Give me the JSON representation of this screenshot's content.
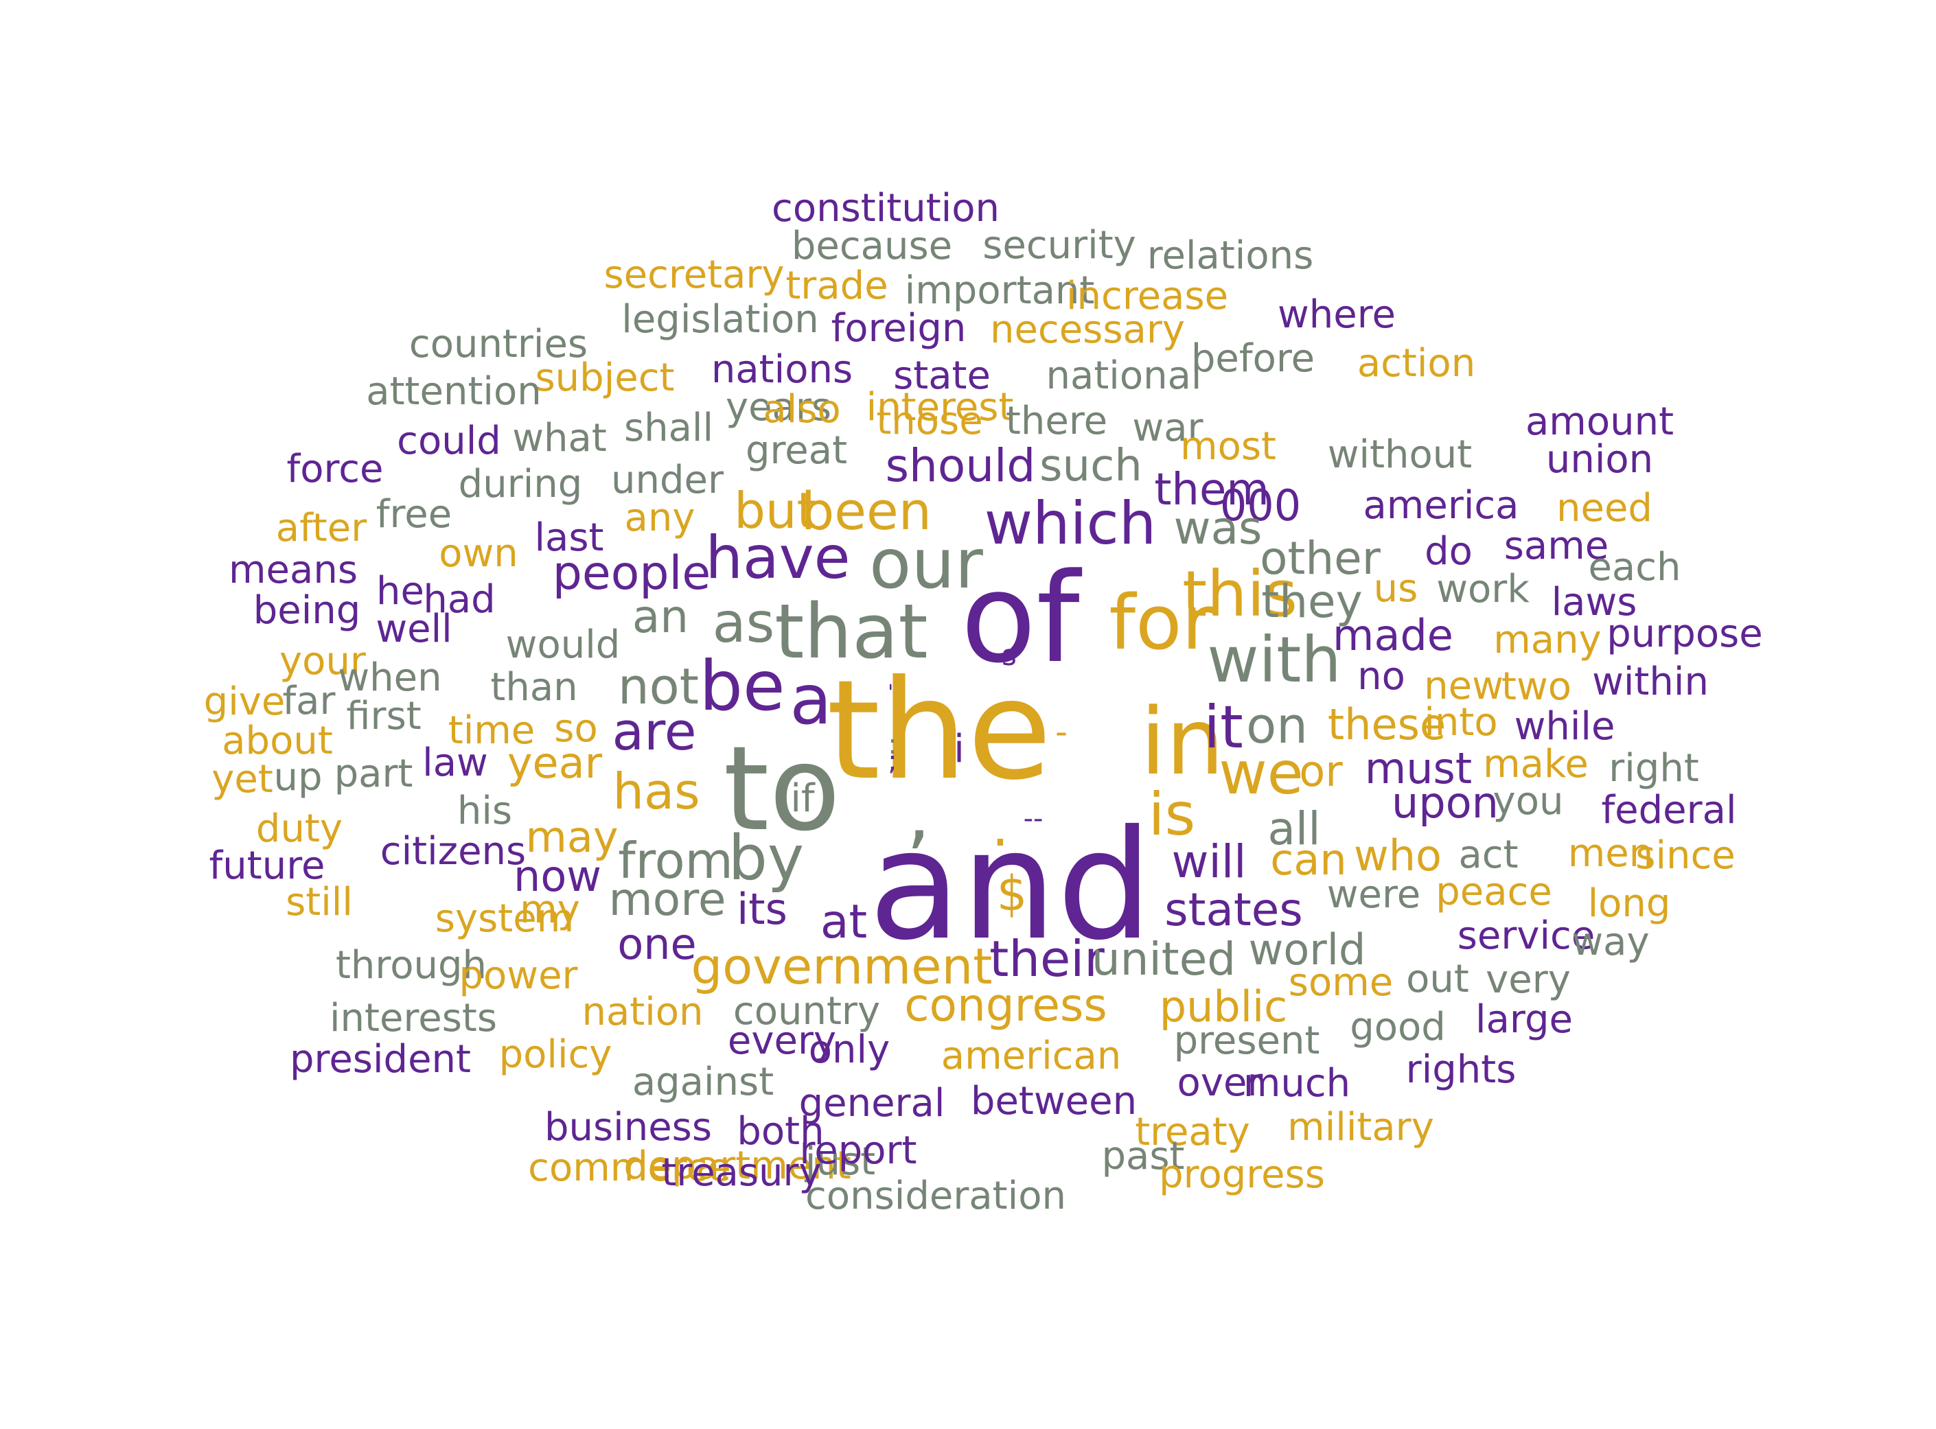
{
  "colors": {
    "purple": "#5f2592",
    "gold": "#daa520",
    "gray": "#768576"
  },
  "words": [
    {
      "text": "constitution",
      "color": "purple"
    },
    {
      "text": "because",
      "color": "gray"
    },
    {
      "text": "security",
      "color": "gray"
    },
    {
      "text": "relations",
      "color": "gray"
    },
    {
      "text": "secretary",
      "color": "gold"
    },
    {
      "text": "trade",
      "color": "gold"
    },
    {
      "text": "important",
      "color": "gray"
    },
    {
      "text": "increase",
      "color": "gold"
    },
    {
      "text": "where",
      "color": "purple"
    },
    {
      "text": "legislation",
      "color": "gray"
    },
    {
      "text": "foreign",
      "color": "purple"
    },
    {
      "text": "necessary",
      "color": "gold"
    },
    {
      "text": "countries",
      "color": "gray"
    },
    {
      "text": "before",
      "color": "gray"
    },
    {
      "text": "action",
      "color": "gold"
    },
    {
      "text": "subject",
      "color": "gold"
    },
    {
      "text": "nations",
      "color": "purple"
    },
    {
      "text": "state",
      "color": "purple"
    },
    {
      "text": "national",
      "color": "gray"
    },
    {
      "text": "attention",
      "color": "gray"
    },
    {
      "text": "years",
      "color": "gray"
    },
    {
      "text": "also",
      "color": "gold"
    },
    {
      "text": "interest",
      "color": "gold"
    },
    {
      "text": "amount",
      "color": "purple"
    },
    {
      "text": "shall",
      "color": "gray"
    },
    {
      "text": "those",
      "color": "gold"
    },
    {
      "text": "there",
      "color": "gray"
    },
    {
      "text": "war",
      "color": "gray"
    },
    {
      "text": "could",
      "color": "purple"
    },
    {
      "text": "what",
      "color": "gray"
    },
    {
      "text": "most",
      "color": "gold"
    },
    {
      "text": "without",
      "color": "gray"
    },
    {
      "text": "union",
      "color": "purple"
    },
    {
      "text": "great",
      "color": "gray"
    },
    {
      "text": "should",
      "color": "purple"
    },
    {
      "text": "such",
      "color": "gray"
    },
    {
      "text": "force",
      "color": "purple"
    },
    {
      "text": "during",
      "color": "gray"
    },
    {
      "text": "under",
      "color": "gray"
    },
    {
      "text": "them",
      "color": "purple"
    },
    {
      "text": "000",
      "color": "purple"
    },
    {
      "text": "america",
      "color": "purple"
    },
    {
      "text": "need",
      "color": "gold"
    },
    {
      "text": "after",
      "color": "gold"
    },
    {
      "text": "free",
      "color": "gray"
    },
    {
      "text": "any",
      "color": "gold"
    },
    {
      "text": "but",
      "color": "gold"
    },
    {
      "text": "been",
      "color": "gold"
    },
    {
      "text": "which",
      "color": "purple"
    },
    {
      "text": "was",
      "color": "gray"
    },
    {
      "text": "own",
      "color": "gold"
    },
    {
      "text": "last",
      "color": "purple"
    },
    {
      "text": "have",
      "color": "purple"
    },
    {
      "text": "our",
      "color": "gray"
    },
    {
      "text": "other",
      "color": "gray"
    },
    {
      "text": "do",
      "color": "purple"
    },
    {
      "text": "same",
      "color": "purple"
    },
    {
      "text": "each",
      "color": "gray"
    },
    {
      "text": "means",
      "color": "purple"
    },
    {
      "text": "people",
      "color": "purple"
    },
    {
      "text": "this",
      "color": "gold"
    },
    {
      "text": "he",
      "color": "purple"
    },
    {
      "text": "had",
      "color": "purple"
    },
    {
      "text": "us",
      "color": "gold"
    },
    {
      "text": "work",
      "color": "gray"
    },
    {
      "text": "laws",
      "color": "purple"
    },
    {
      "text": "being",
      "color": "purple"
    },
    {
      "text": "well",
      "color": "purple"
    },
    {
      "text": "an",
      "color": "gray"
    },
    {
      "text": "as",
      "color": "gray"
    },
    {
      "text": "that",
      "color": "gray"
    },
    {
      "text": "of",
      "color": "purple"
    },
    {
      "text": "for",
      "color": "gold"
    },
    {
      "text": "they",
      "color": "gray"
    },
    {
      "text": "made",
      "color": "purple"
    },
    {
      "text": "many",
      "color": "gold"
    },
    {
      "text": "purpose",
      "color": "purple"
    },
    {
      "text": "would",
      "color": "gray"
    },
    {
      "text": "with",
      "color": "gray"
    },
    {
      "text": "s",
      "color": "purple"
    },
    {
      "text": "your",
      "color": "gold"
    },
    {
      "text": "when",
      "color": "gray"
    },
    {
      "text": "not",
      "color": "gray"
    },
    {
      "text": "be",
      "color": "purple"
    },
    {
      "text": "a",
      "color": "purple"
    },
    {
      "text": "no",
      "color": "purple"
    },
    {
      "text": "new",
      "color": "gold"
    },
    {
      "text": "two",
      "color": "gold"
    },
    {
      "text": "within",
      "color": "purple"
    },
    {
      "text": "than",
      "color": "gray"
    },
    {
      "text": "give",
      "color": "gold"
    },
    {
      "text": "far",
      "color": "gray"
    },
    {
      "text": "first",
      "color": "gray"
    },
    {
      "text": "\"",
      "color": "purple"
    },
    {
      "text": "the",
      "color": "gold"
    },
    {
      "text": "in",
      "color": "gold"
    },
    {
      "text": "it",
      "color": "purple"
    },
    {
      "text": "on",
      "color": "gray"
    },
    {
      "text": "these",
      "color": "gold"
    },
    {
      "text": "into",
      "color": "gold"
    },
    {
      "text": "while",
      "color": "purple"
    },
    {
      "text": "time",
      "color": "gold"
    },
    {
      "text": "so",
      "color": "gold"
    },
    {
      "text": "are",
      "color": "purple"
    },
    {
      "text": "-",
      "color": "gold"
    },
    {
      "text": "about",
      "color": "gold"
    },
    {
      "text": ":",
      "color": "gray"
    },
    {
      "text": ";",
      "color": "purple"
    },
    {
      "text": "i",
      "color": "purple"
    },
    {
      "text": "year",
      "color": "gold"
    },
    {
      "text": "law",
      "color": "purple"
    },
    {
      "text": "part",
      "color": "gray"
    },
    {
      "text": "we",
      "color": "gold"
    },
    {
      "text": "or",
      "color": "gold"
    },
    {
      "text": "must",
      "color": "purple"
    },
    {
      "text": "make",
      "color": "gold"
    },
    {
      "text": "right",
      "color": "gray"
    },
    {
      "text": "yet",
      "color": "gold"
    },
    {
      "text": "up",
      "color": "gray"
    },
    {
      "text": "to",
      "color": "gray"
    },
    {
      "text": ",",
      "color": "gray"
    },
    {
      "text": "has",
      "color": "gold"
    },
    {
      "text": "if",
      "color": "gray"
    },
    {
      "text": "is",
      "color": "gold"
    },
    {
      "text": "all",
      "color": "gray"
    },
    {
      "text": "upon",
      "color": "purple"
    },
    {
      "text": "you",
      "color": "gray"
    },
    {
      "text": "federal",
      "color": "purple"
    },
    {
      "text": "his",
      "color": "gray"
    },
    {
      "text": "duty",
      "color": "gold"
    },
    {
      "text": "--",
      "color": "purple"
    },
    {
      "text": ".",
      "color": "gold"
    },
    {
      "text": "may",
      "color": "gold"
    },
    {
      "text": "citizens",
      "color": "purple"
    },
    {
      "text": "future",
      "color": "purple"
    },
    {
      "text": "from",
      "color": "gray"
    },
    {
      "text": "by",
      "color": "gray"
    },
    {
      "text": "and",
      "color": "purple"
    },
    {
      "text": "will",
      "color": "purple"
    },
    {
      "text": "can",
      "color": "gold"
    },
    {
      "text": "who",
      "color": "gold"
    },
    {
      "text": "act",
      "color": "gray"
    },
    {
      "text": "men",
      "color": "gold"
    },
    {
      "text": "since",
      "color": "gold"
    },
    {
      "text": "now",
      "color": "purple"
    },
    {
      "text": "more",
      "color": "gray"
    },
    {
      "text": "$",
      "color": "gold"
    },
    {
      "text": "states",
      "color": "purple"
    },
    {
      "text": "were",
      "color": "gray"
    },
    {
      "text": "peace",
      "color": "gold"
    },
    {
      "text": "long",
      "color": "gold"
    },
    {
      "text": "still",
      "color": "gold"
    },
    {
      "text": "system",
      "color": "gold"
    },
    {
      "text": "my",
      "color": "gold"
    },
    {
      "text": "its",
      "color": "purple"
    },
    {
      "text": "at",
      "color": "purple"
    },
    {
      "text": "one",
      "color": "purple"
    },
    {
      "text": "service",
      "color": "purple"
    },
    {
      "text": "way",
      "color": "gray"
    },
    {
      "text": "government",
      "color": "gold"
    },
    {
      "text": "their",
      "color": "purple"
    },
    {
      "text": "united",
      "color": "gray"
    },
    {
      "text": "world",
      "color": "gray"
    },
    {
      "text": "through",
      "color": "gray"
    },
    {
      "text": "power",
      "color": "gold"
    },
    {
      "text": "out",
      "color": "gray"
    },
    {
      "text": "very",
      "color": "gray"
    },
    {
      "text": "some",
      "color": "gold"
    },
    {
      "text": "congress",
      "color": "gold"
    },
    {
      "text": "country",
      "color": "gray"
    },
    {
      "text": "nation",
      "color": "gold"
    },
    {
      "text": "public",
      "color": "gold"
    },
    {
      "text": "interests",
      "color": "gray"
    },
    {
      "text": "large",
      "color": "purple"
    },
    {
      "text": "good",
      "color": "gray"
    },
    {
      "text": "every",
      "color": "purple"
    },
    {
      "text": "present",
      "color": "gray"
    },
    {
      "text": "policy",
      "color": "gold"
    },
    {
      "text": "only",
      "color": "purple"
    },
    {
      "text": "american",
      "color": "gold"
    },
    {
      "text": "president",
      "color": "purple"
    },
    {
      "text": "rights",
      "color": "purple"
    },
    {
      "text": "against",
      "color": "gray"
    },
    {
      "text": "over",
      "color": "purple"
    },
    {
      "text": "much",
      "color": "purple"
    },
    {
      "text": "general",
      "color": "purple"
    },
    {
      "text": "between",
      "color": "purple"
    },
    {
      "text": "business",
      "color": "purple"
    },
    {
      "text": "both",
      "color": "purple"
    },
    {
      "text": "military",
      "color": "gold"
    },
    {
      "text": "treaty",
      "color": "gold"
    },
    {
      "text": "department",
      "color": "gold"
    },
    {
      "text": "just",
      "color": "gray"
    },
    {
      "text": "past",
      "color": "gray"
    },
    {
      "text": "report",
      "color": "purple"
    },
    {
      "text": "commerce",
      "color": "gold"
    },
    {
      "text": "treasury",
      "color": "purple"
    },
    {
      "text": "progress",
      "color": "gold"
    },
    {
      "text": "consideration",
      "color": "gray"
    }
  ]
}
